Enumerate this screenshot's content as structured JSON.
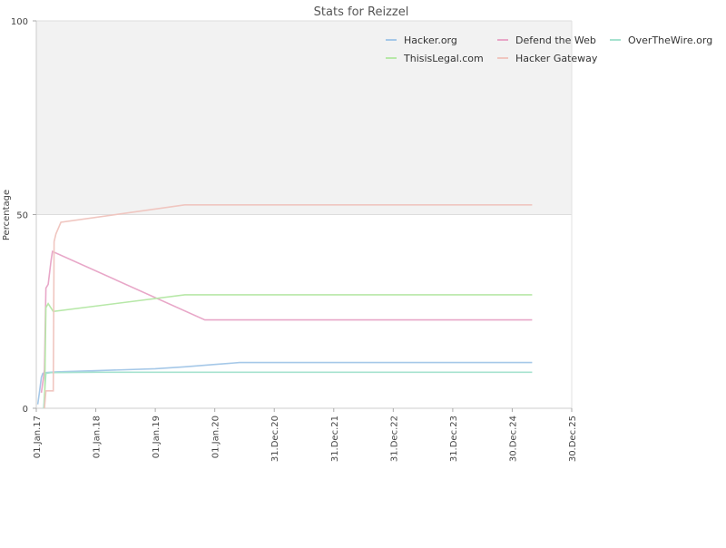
{
  "chart_data": {
    "type": "line",
    "title": "Stats for Reizzel",
    "xlabel": "",
    "ylabel": "Percentage",
    "x_type": "date",
    "xlim": [
      "2017-01-01",
      "2025-12-30"
    ],
    "ylim": [
      0,
      100
    ],
    "y_ticks": [
      0,
      50,
      100
    ],
    "x_ticks": [
      {
        "date": "2017-01-01",
        "label": "01.Jan.17"
      },
      {
        "date": "2018-01-01",
        "label": "01.Jan.18"
      },
      {
        "date": "2019-01-01",
        "label": "01.Jan.19"
      },
      {
        "date": "2020-01-01",
        "label": "01.Jan.20"
      },
      {
        "date": "2020-12-31",
        "label": "31.Dec.20"
      },
      {
        "date": "2021-12-31",
        "label": "31.Dec.21"
      },
      {
        "date": "2022-12-31",
        "label": "31.Dec.22"
      },
      {
        "date": "2023-12-31",
        "label": "31.Dec.23"
      },
      {
        "date": "2024-12-30",
        "label": "30.Dec.24"
      },
      {
        "date": "2025-12-30",
        "label": "30.Dec.25"
      }
    ],
    "grid": true,
    "legend_position": "top-right",
    "upper_band": {
      "from": 50,
      "to": 100,
      "color": "#f2f2f2"
    },
    "series": [
      {
        "name": "Hacker.org",
        "color": "#a5c8e8",
        "points": [
          [
            "2017-01-10",
            1
          ],
          [
            "2017-01-20",
            4
          ],
          [
            "2017-02-01",
            8
          ],
          [
            "2017-02-10",
            9
          ],
          [
            "2017-03-01",
            9.2
          ],
          [
            "2017-05-01",
            9.4
          ],
          [
            "2018-01-01",
            9.7
          ],
          [
            "2019-01-01",
            10.2
          ],
          [
            "2019-07-01",
            10.7
          ],
          [
            "2020-01-01",
            11.3
          ],
          [
            "2020-06-01",
            11.8
          ],
          [
            "2025-05-01",
            11.8
          ]
        ]
      },
      {
        "name": "Defend the Web",
        "color": "#e8a7c8",
        "points": [
          [
            "2017-02-01",
            4
          ],
          [
            "2017-02-20",
            10
          ],
          [
            "2017-03-01",
            31
          ],
          [
            "2017-03-15",
            32
          ],
          [
            "2017-04-01",
            38
          ],
          [
            "2017-04-10",
            40.5
          ],
          [
            "2019-11-01",
            22.8
          ],
          [
            "2025-05-01",
            22.8
          ]
        ]
      },
      {
        "name": "OverTheWire.org",
        "color": "#a6e2cf",
        "points": [
          [
            "2017-02-15",
            0
          ],
          [
            "2017-03-01",
            9
          ],
          [
            "2017-04-01",
            9.2
          ],
          [
            "2018-01-01",
            9.3
          ],
          [
            "2025-05-01",
            9.3
          ]
        ]
      },
      {
        "name": "ThisisLegal.com",
        "color": "#b7e8a8",
        "points": [
          [
            "2017-02-20",
            0
          ],
          [
            "2017-03-01",
            26
          ],
          [
            "2017-03-15",
            27
          ],
          [
            "2017-04-15",
            25
          ],
          [
            "2019-07-01",
            29.3
          ],
          [
            "2025-05-01",
            29.3
          ]
        ]
      },
      {
        "name": "Hacker Gateway",
        "color": "#f0c6c0",
        "points": [
          [
            "2017-02-20",
            0
          ],
          [
            "2017-03-01",
            4.5
          ],
          [
            "2017-04-15",
            4.5
          ],
          [
            "2017-04-20",
            43
          ],
          [
            "2017-05-01",
            45
          ],
          [
            "2017-06-01",
            48
          ],
          [
            "2019-07-01",
            52.5
          ],
          [
            "2025-05-01",
            52.5
          ]
        ]
      }
    ]
  },
  "legend_items": [
    {
      "label": "Hacker.org",
      "color": "#a5c8e8"
    },
    {
      "label": "Defend the Web",
      "color": "#e8a7c8"
    },
    {
      "label": "OverTheWire.org",
      "color": "#a6e2cf"
    },
    {
      "label": "ThisisLegal.com",
      "color": "#b7e8a8"
    },
    {
      "label": "Hacker Gateway",
      "color": "#f0c6c0"
    }
  ]
}
